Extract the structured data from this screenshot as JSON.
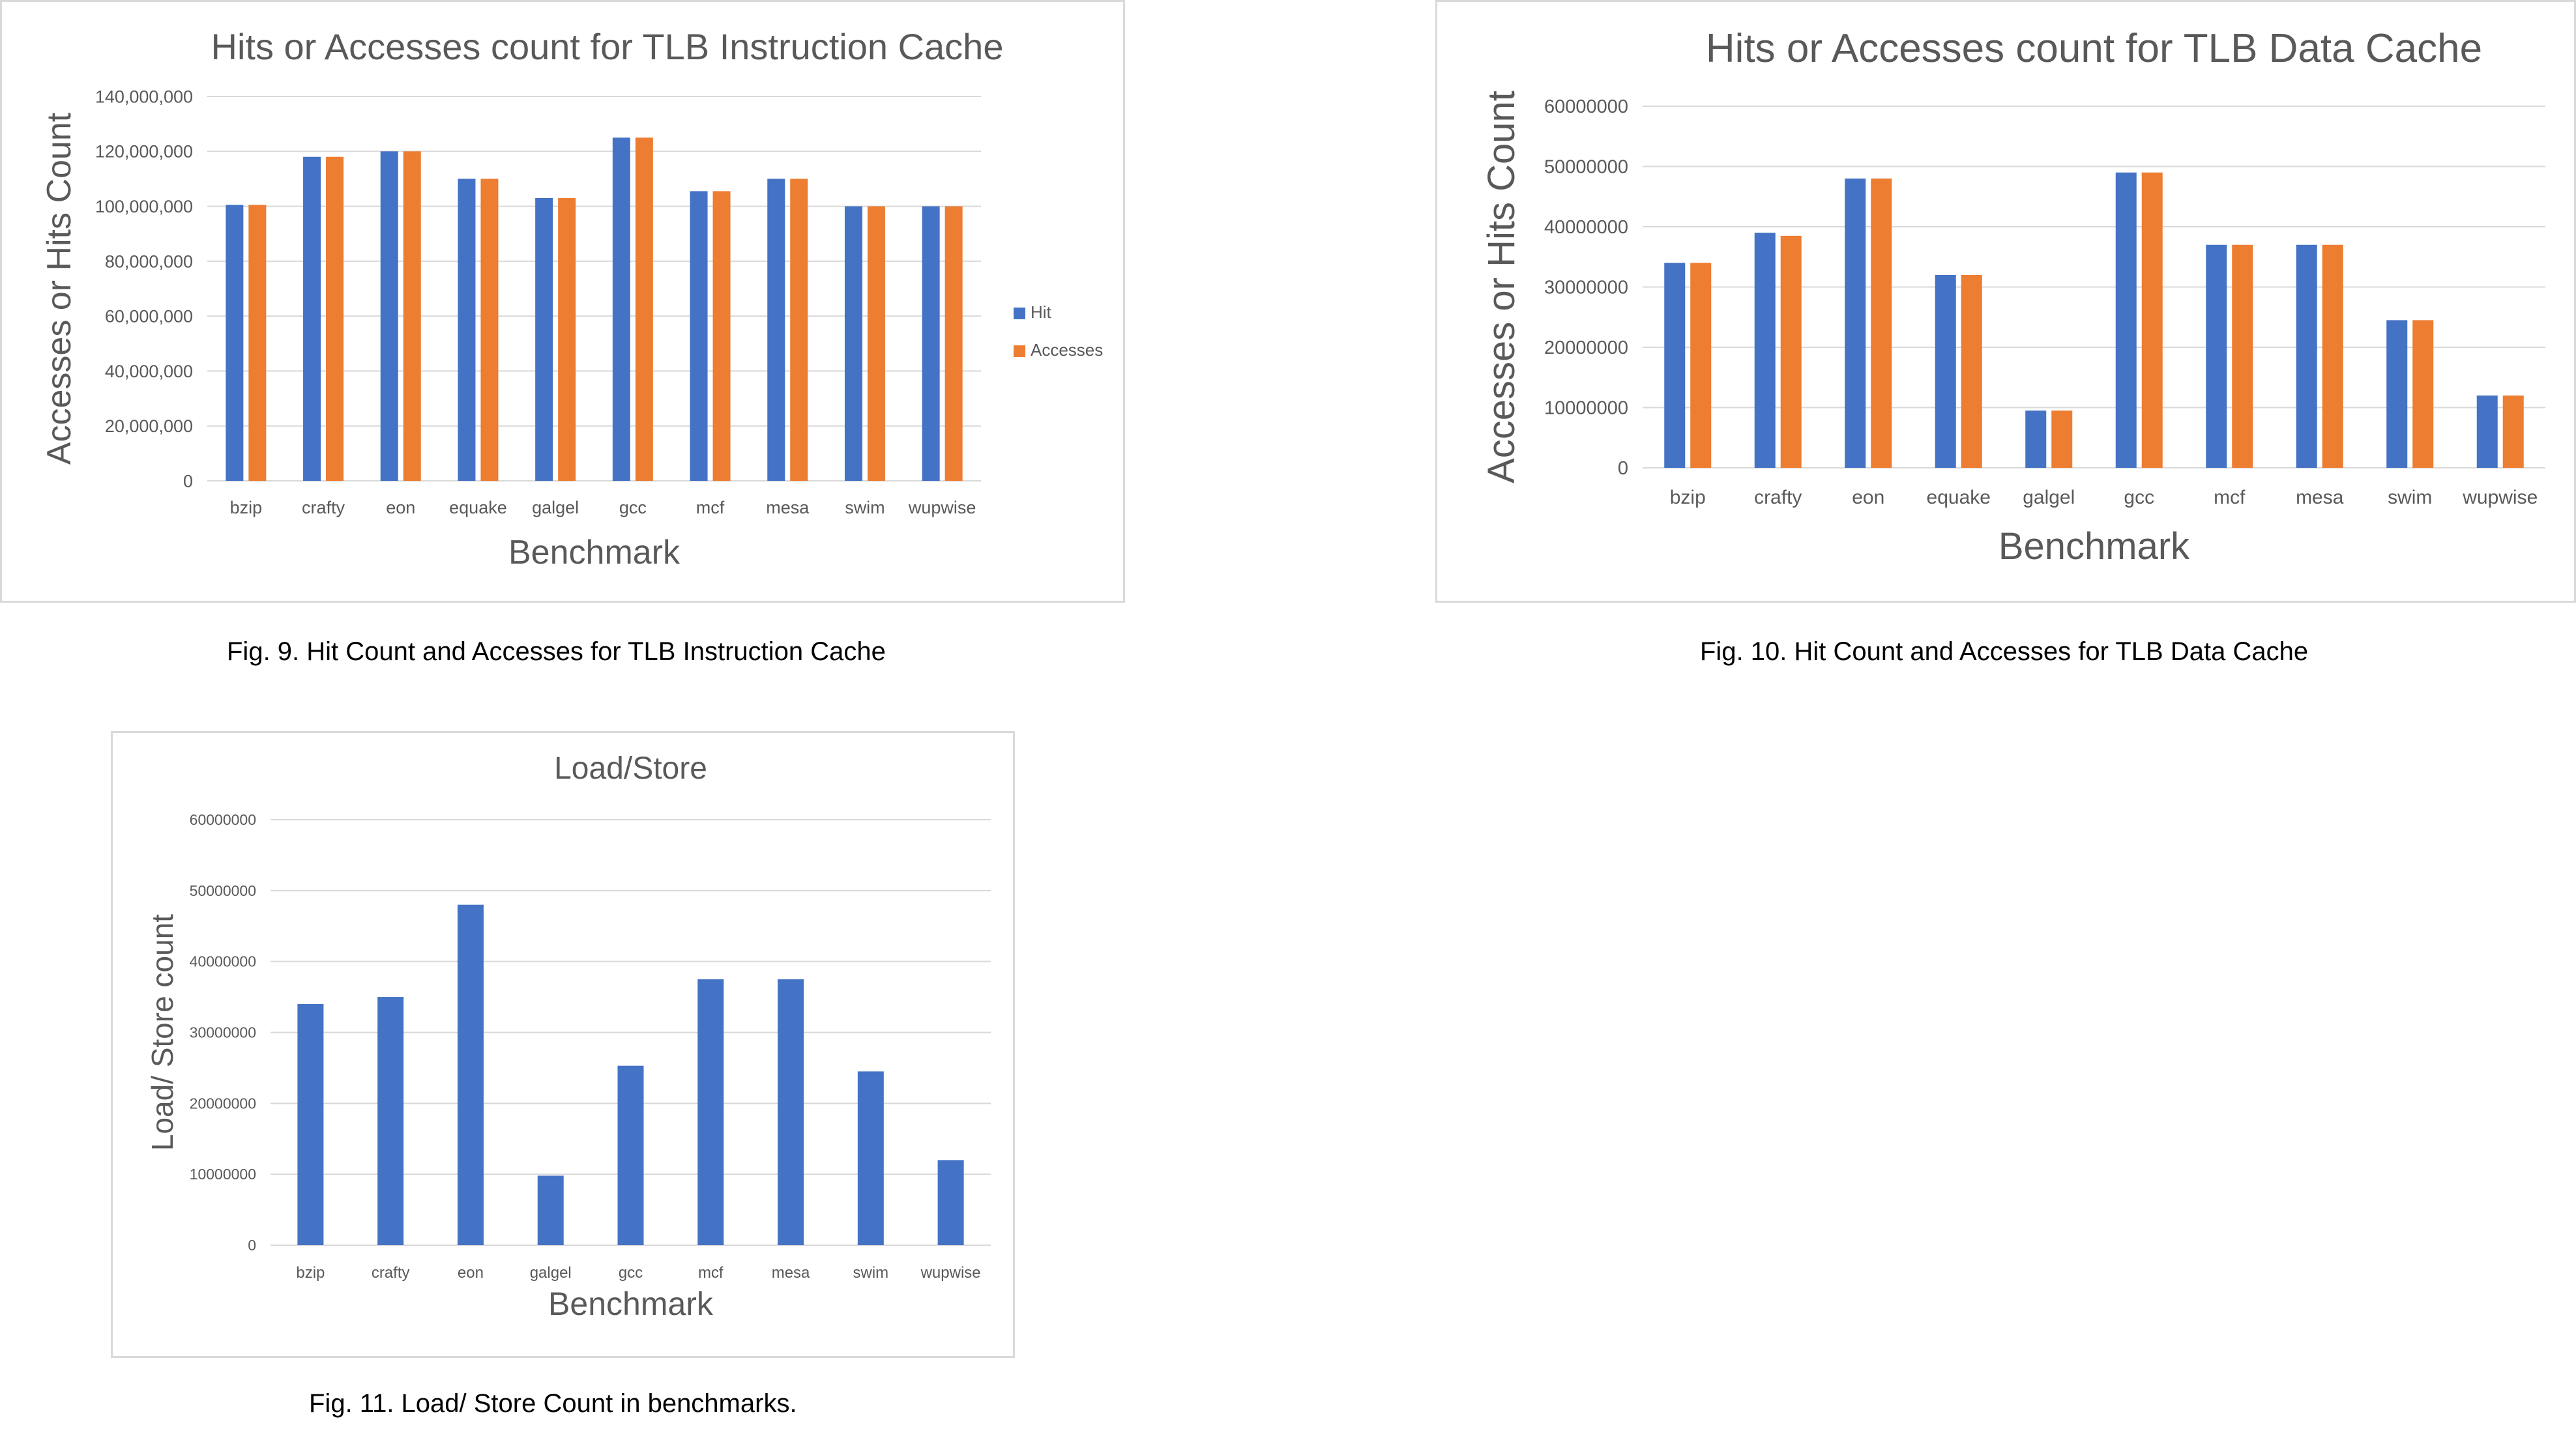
{
  "colors": {
    "hit": "#4472c4",
    "accesses": "#ed7d31",
    "grid": "#d9d9d9",
    "text": "#595959"
  },
  "captions": {
    "fig9": "Fig. 9. Hit Count and Accesses for TLB Instruction Cache",
    "fig10": "Fig. 10. Hit Count and Accesses for TLB Data Cache",
    "fig11": "Fig. 11. Load/ Store Count in benchmarks."
  },
  "chart_data": [
    {
      "type": "bar",
      "title": "Hits or Accesses count for TLB Instruction Cache",
      "xlabel": "Benchmark",
      "ylabel": "Accesses or Hits Count",
      "categories": [
        "bzip",
        "crafty",
        "eon",
        "equake",
        "galgel",
        "gcc",
        "mcf",
        "mesa",
        "swim",
        "wupwise"
      ],
      "series": [
        {
          "name": "Hit",
          "values": [
            100500000,
            118000000,
            120000000,
            110000000,
            103000000,
            125000000,
            105500000,
            110000000,
            100000000,
            100000000
          ]
        },
        {
          "name": "Accesses",
          "values": [
            100500000,
            118000000,
            120000000,
            110000000,
            103000000,
            125000000,
            105500000,
            110000000,
            100000000,
            100000000
          ]
        }
      ],
      "ylim": [
        0,
        140000000
      ],
      "yticks": [
        0,
        20000000,
        40000000,
        60000000,
        80000000,
        100000000,
        120000000,
        140000000
      ],
      "ytick_labels": [
        "0",
        "20,000,000",
        "40,000,000",
        "60,000,000",
        "80,000,000",
        "100,000,000",
        "120,000,000",
        "140,000,000"
      ],
      "grid": true,
      "legend": "right"
    },
    {
      "type": "bar",
      "title": "Hits or Accesses count for TLB  Data Cache",
      "xlabel": "Benchmark",
      "ylabel": "Accesses or Hits Count",
      "categories": [
        "bzip",
        "crafty",
        "eon",
        "equake",
        "galgel",
        "gcc",
        "mcf",
        "mesa",
        "swim",
        "wupwise"
      ],
      "series": [
        {
          "name": "Hit",
          "values": [
            34000000,
            39000000,
            48000000,
            32000000,
            9500000,
            49000000,
            37000000,
            37000000,
            24500000,
            12000000
          ]
        },
        {
          "name": "Accesses",
          "values": [
            34000000,
            38500000,
            48000000,
            32000000,
            9500000,
            49000000,
            37000000,
            37000000,
            24500000,
            12000000
          ]
        }
      ],
      "ylim": [
        0,
        60000000
      ],
      "yticks": [
        0,
        10000000,
        20000000,
        30000000,
        40000000,
        50000000,
        60000000
      ],
      "ytick_labels": [
        "0",
        "10000000",
        "20000000",
        "30000000",
        "40000000",
        "50000000",
        "60000000"
      ],
      "grid": true,
      "legend": "none"
    },
    {
      "type": "bar",
      "title": "Load/Store",
      "xlabel": "Benchmark",
      "ylabel": "Load/ Store count",
      "categories": [
        "bzip",
        "crafty",
        "eon",
        "galgel",
        "gcc",
        "mcf",
        "mesa",
        "swim",
        "wupwise"
      ],
      "series": [
        {
          "values": [
            34000000,
            35000000,
            48000000,
            9800000,
            25300000,
            37500000,
            37500000,
            24500000,
            12000000
          ]
        }
      ],
      "ylim": [
        0,
        60000000
      ],
      "yticks": [
        0,
        10000000,
        20000000,
        30000000,
        40000000,
        50000000,
        60000000
      ],
      "ytick_labels": [
        "0",
        "10000000",
        "20000000",
        "30000000",
        "40000000",
        "50000000",
        "60000000"
      ],
      "grid": true,
      "legend": "none"
    }
  ]
}
